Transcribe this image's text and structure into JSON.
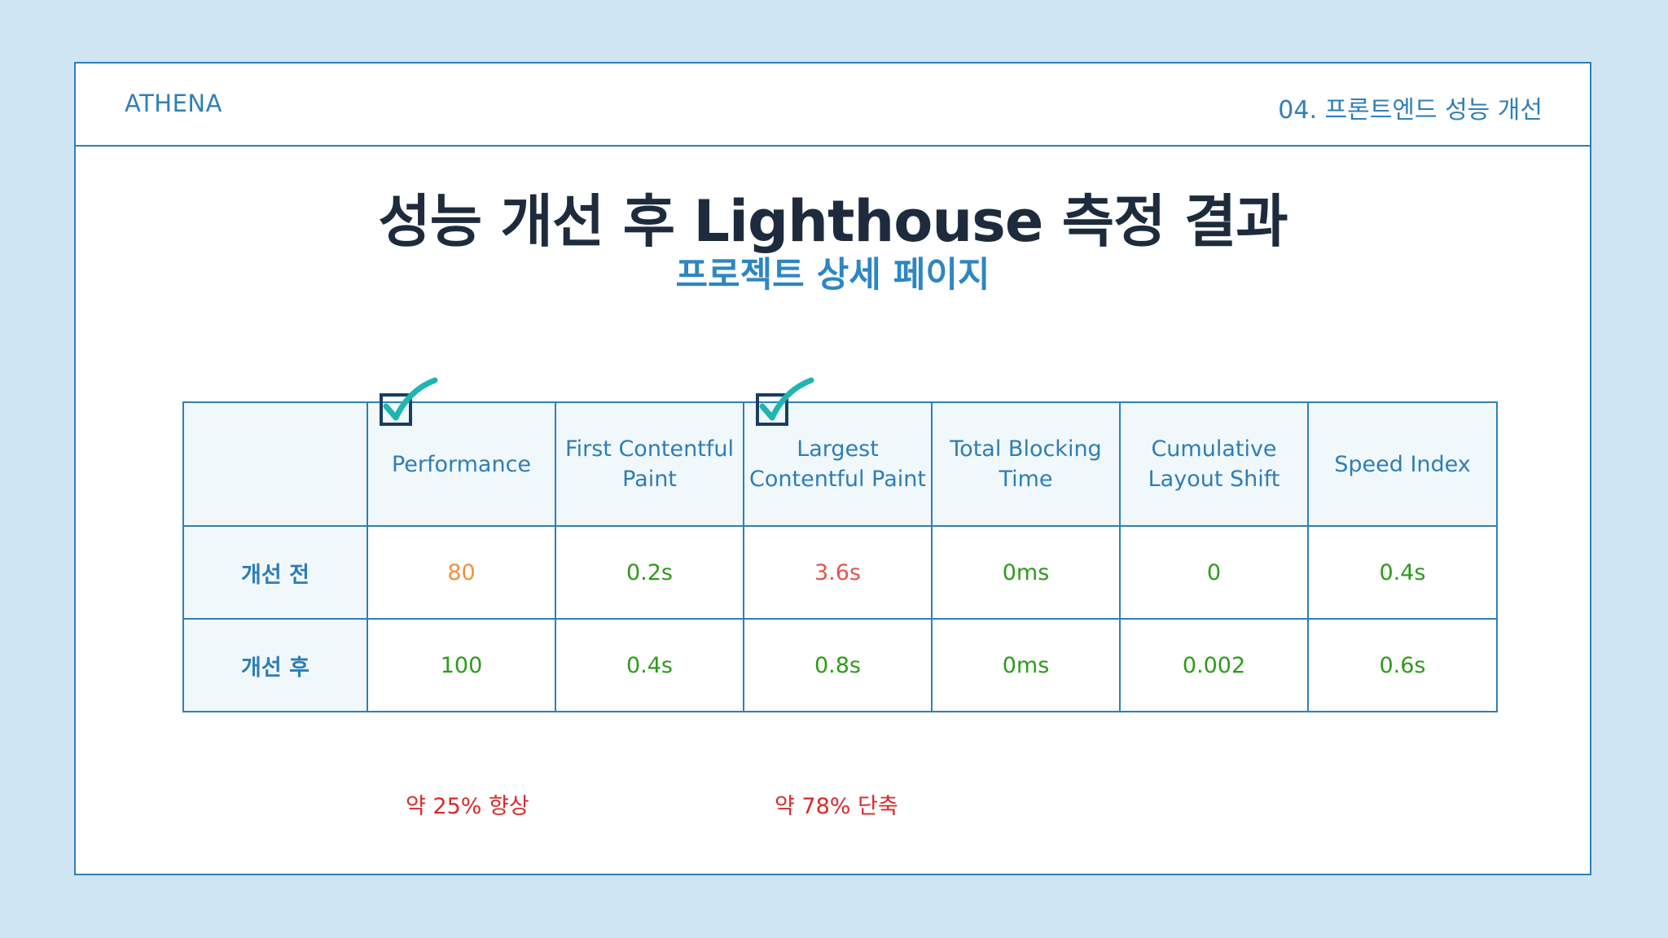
{
  "header": {
    "brand": "ATHENA",
    "section": "04. 프론트엔드 성능 개선"
  },
  "title": "성능 개선 후 Lighthouse 측정 결과",
  "subtitle": "프로젝트 상세 페이지",
  "table": {
    "columns": [
      "Performance",
      "First Contentful Paint",
      "Largest Contentful Paint",
      "Total Blocking Time",
      "Cumulative Layout Shift",
      "Speed Index"
    ],
    "rows": [
      {
        "label": "개선 전",
        "cells": [
          {
            "value": "80",
            "color": "#f0923c"
          },
          {
            "value": "0.2s",
            "color": "#2f9a1c"
          },
          {
            "value": "3.6s",
            "color": "#e05555"
          },
          {
            "value": "0ms",
            "color": "#2f9a1c"
          },
          {
            "value": "0",
            "color": "#2f9a1c"
          },
          {
            "value": "0.4s",
            "color": "#2f9a1c"
          }
        ]
      },
      {
        "label": "개선 후",
        "cells": [
          {
            "value": "100",
            "color": "#2f9a1c"
          },
          {
            "value": "0.4s",
            "color": "#2f9a1c"
          },
          {
            "value": "0.8s",
            "color": "#2f9a1c"
          },
          {
            "value": "0ms",
            "color": "#2f9a1c"
          },
          {
            "value": "0.002",
            "color": "#2f9a1c"
          },
          {
            "value": "0.6s",
            "color": "#2f9a1c"
          }
        ]
      }
    ],
    "checked_columns": [
      "Performance",
      "Largest Contentful Paint"
    ]
  },
  "notes": {
    "performance": "약 25% 향상",
    "lcp": "약 78% 단축"
  },
  "colors": {
    "accent": "#2f7fb8",
    "check": "#1fb5b0",
    "good": "#2f9a1c",
    "average": "#f0923c",
    "poor": "#e05555",
    "note": "#d92a2a"
  }
}
